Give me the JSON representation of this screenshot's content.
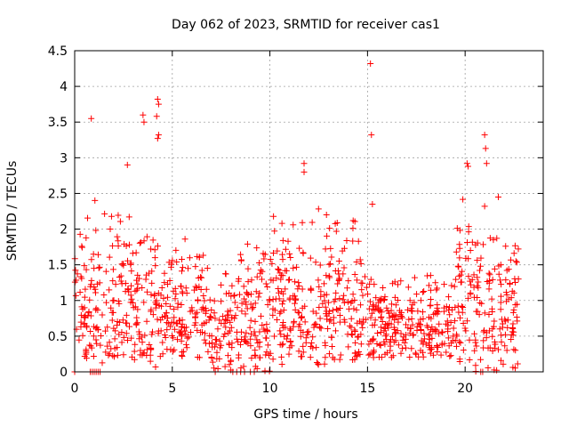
{
  "chart_data": {
    "type": "scatter",
    "title": "Day 062 of 2023, SRMTID for receiver cas1",
    "xlabel": "GPS time / hours",
    "ylabel": "SRMTID / TECUs",
    "xlim": [
      0,
      24
    ],
    "ylim": [
      0,
      4.5
    ],
    "xticks": [
      0,
      5,
      10,
      15,
      20
    ],
    "xtick_labels": [
      "0",
      "5",
      "10",
      "15",
      "20"
    ],
    "yticks": [
      0,
      0.5,
      1,
      1.5,
      2,
      2.5,
      3,
      3.5,
      4,
      4.5
    ],
    "ytick_labels": [
      "0",
      "0.5",
      "1",
      "1.5",
      "2",
      "2.5",
      "3",
      "3.5",
      "4",
      "4.5"
    ],
    "grid": true,
    "marker": "+",
    "color": "#ff0000",
    "x_extent_hours": [
      0,
      22.75
    ],
    "notable_points": [
      {
        "x": 0.85,
        "y": 3.55
      },
      {
        "x": 3.5,
        "y": 3.6
      },
      {
        "x": 3.55,
        "y": 3.5
      },
      {
        "x": 4.25,
        "y": 3.82
      },
      {
        "x": 4.3,
        "y": 3.75
      },
      {
        "x": 4.2,
        "y": 3.58
      },
      {
        "x": 4.3,
        "y": 3.32
      },
      {
        "x": 4.25,
        "y": 3.27
      },
      {
        "x": 2.7,
        "y": 2.9
      },
      {
        "x": 11.75,
        "y": 2.92
      },
      {
        "x": 11.75,
        "y": 2.8
      },
      {
        "x": 15.15,
        "y": 4.32
      },
      {
        "x": 15.2,
        "y": 3.32
      },
      {
        "x": 15.25,
        "y": 2.35
      },
      {
        "x": 20.1,
        "y": 2.92
      },
      {
        "x": 20.15,
        "y": 2.88
      },
      {
        "x": 21.0,
        "y": 3.32
      },
      {
        "x": 21.05,
        "y": 3.13
      },
      {
        "x": 21.1,
        "y": 2.92
      },
      {
        "x": 21.0,
        "y": 2.32
      },
      {
        "x": 21.7,
        "y": 2.45
      }
    ],
    "zero_points_x": [
      0.0,
      0.8,
      0.9,
      1.0,
      1.1,
      1.2,
      1.3,
      7.2,
      8.1,
      8.3,
      8.5,
      8.7,
      9.0,
      9.2,
      20.8,
      20.9
    ],
    "bulk_profile": [
      {
        "x_from": 0.0,
        "x_to": 1.5,
        "y_low": 0.1,
        "y_high": 2.5
      },
      {
        "x_from": 1.5,
        "y_low": 0.2,
        "x_to": 3.0,
        "y_high": 2.4
      },
      {
        "x_from": 3.0,
        "x_to": 4.5,
        "y_low": 0.05,
        "y_high": 2.3
      },
      {
        "x_from": 4.5,
        "x_to": 7.0,
        "y_low": 0.2,
        "y_high": 2.1
      },
      {
        "x_from": 7.0,
        "x_to": 10.0,
        "y_low": 0.0,
        "y_high": 1.9
      },
      {
        "x_from": 10.0,
        "x_to": 13.0,
        "y_low": 0.1,
        "y_high": 2.3
      },
      {
        "x_from": 13.0,
        "x_to": 15.0,
        "y_low": 0.15,
        "y_high": 2.3
      },
      {
        "x_from": 15.0,
        "x_to": 19.5,
        "y_low": 0.2,
        "y_high": 1.4
      },
      {
        "x_from": 19.5,
        "x_to": 20.5,
        "y_low": 0.1,
        "y_high": 2.6
      },
      {
        "x_from": 20.5,
        "x_to": 22.75,
        "y_low": 0.0,
        "y_high": 2.2
      }
    ]
  }
}
